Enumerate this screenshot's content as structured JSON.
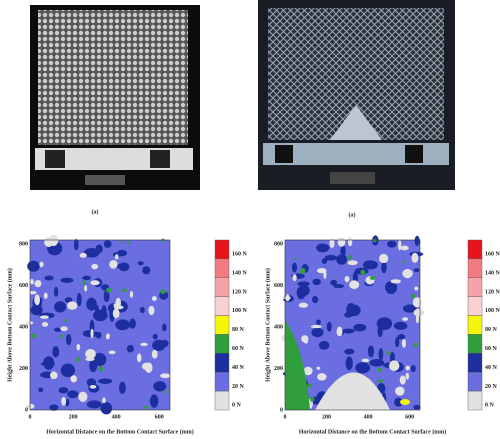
{
  "photos": [
    {
      "caption": "(a)"
    },
    {
      "caption": "(a)"
    }
  ],
  "plots": [
    {
      "ylabel": "Height Above Bottom Contact Surface (mm)",
      "xlabel": "Horizontal Distance on the Bottom Contact Surface (mm)",
      "xticks": [
        0,
        200,
        400,
        600
      ],
      "yticks": [
        0,
        200,
        400,
        600,
        800
      ]
    },
    {
      "ylabel": "Height Above Bottom Contact Surface (mm)",
      "xlabel": "Horizontal Distance on the Bottom Contact Surface (mm)",
      "xticks": [
        0,
        200,
        400,
        600
      ],
      "yticks": [
        0,
        200,
        400,
        600,
        800
      ]
    }
  ],
  "colorbar": {
    "labels": [
      "160 N",
      "140 N",
      "120 N",
      "100 N",
      "80 N",
      "60 N",
      "40 N",
      "20 N",
      "0 N"
    ],
    "colors": [
      "#e8141b",
      "#f27b82",
      "#f4a3a8",
      "#f8d0d2",
      "#f5f50a",
      "#2f9e3c",
      "#1d2fa0",
      "#6a6ee0",
      "#e2e2e2"
    ]
  }
}
